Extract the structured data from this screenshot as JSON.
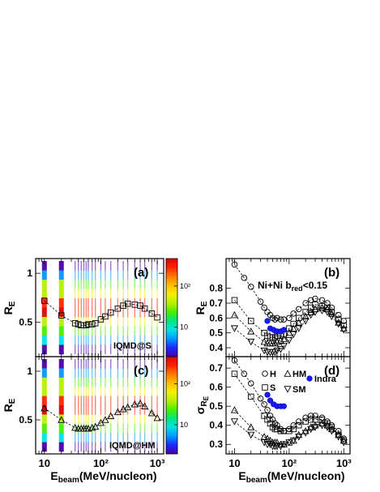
{
  "figure": {
    "panel_labels": [
      "(a)",
      "(b)",
      "(c)",
      "(d)"
    ],
    "x_axis_title_main": "E",
    "x_axis_title_sub": "beam",
    "x_axis_title_units": "(MeV/nucleon)",
    "y_axis_title_main": "R",
    "y_axis_title_sub": "E",
    "sigma_axis_main": "σ",
    "sigma_axis_sub1": "R",
    "sigma_axis_sub2": "E"
  },
  "colorbar": {
    "tick_labels": [
      "10²",
      "10"
    ],
    "colors": [
      "#4b00a8",
      "#1a28ff",
      "#0098ff",
      "#00e3e3",
      "#00e680",
      "#48f000",
      "#b8f000",
      "#f5f000",
      "#ffc000",
      "#ff7a00",
      "#ff2400",
      "#e00000"
    ]
  },
  "chart_data": [
    {
      "id": "a",
      "type": "scatter",
      "label": "IQMD@S",
      "xscale": "log",
      "xlim": [
        7,
        1300
      ],
      "ylim": [
        0.15,
        1.15
      ],
      "xticks": [
        10,
        100,
        1000
      ],
      "xtick_labels": [
        "10",
        "10²",
        "10³"
      ],
      "yticks": [
        0.5,
        1
      ],
      "ytick_labels": [
        "0.5",
        "1"
      ],
      "series": [
        {
          "marker": "square",
          "x": [
            10,
            20,
            35,
            40,
            45,
            50,
            55,
            60,
            70,
            80,
            100,
            120,
            150,
            200,
            250,
            300,
            400,
            500,
            600,
            800,
            1000
          ],
          "y": [
            0.72,
            0.57,
            0.49,
            0.48,
            0.47,
            0.47,
            0.47,
            0.48,
            0.48,
            0.49,
            0.53,
            0.56,
            0.6,
            0.64,
            0.67,
            0.69,
            0.68,
            0.67,
            0.64,
            0.59,
            0.55
          ]
        }
      ],
      "vertical_bands_x": [
        10,
        20,
        35,
        40,
        45,
        50,
        55,
        60,
        70,
        80,
        100,
        120,
        150,
        200,
        250,
        300,
        400,
        500,
        600,
        800,
        1000
      ]
    },
    {
      "id": "c",
      "type": "scatter",
      "label": "IQMD@HM",
      "xscale": "log",
      "xlim": [
        7,
        1300
      ],
      "ylim": [
        0.15,
        1.15
      ],
      "xticks": [
        10,
        100,
        1000
      ],
      "xtick_labels": [
        "10",
        "10²",
        "10³"
      ],
      "yticks": [
        0.5,
        1
      ],
      "ytick_labels": [
        "0.5",
        "1"
      ],
      "series": [
        {
          "marker": "triangle-up",
          "x": [
            10,
            20,
            35,
            40,
            45,
            50,
            55,
            60,
            70,
            80,
            100,
            120,
            150,
            200,
            250,
            300,
            400,
            500,
            600,
            800,
            1000
          ],
          "y": [
            0.62,
            0.5,
            0.42,
            0.41,
            0.41,
            0.41,
            0.41,
            0.41,
            0.42,
            0.43,
            0.47,
            0.5,
            0.54,
            0.58,
            0.61,
            0.63,
            0.66,
            0.67,
            0.64,
            0.57,
            0.52
          ]
        }
      ],
      "vertical_bands_x": [
        10,
        20,
        35,
        40,
        45,
        50,
        55,
        60,
        70,
        80,
        100,
        120,
        150,
        200,
        250,
        300,
        400,
        500,
        600,
        800,
        1000
      ]
    },
    {
      "id": "b",
      "type": "scatter",
      "annotation": "Ni+Ni b",
      "annotation_sub": "red",
      "annotation_tail": "<0.15",
      "xscale": "log",
      "xlim": [
        7,
        1300
      ],
      "ylim": [
        0.34,
        1.0
      ],
      "xticks": [
        10,
        100,
        1000
      ],
      "xtick_labels": [
        "10",
        "10²",
        "10³"
      ],
      "yticks": [
        0.4,
        0.5,
        0.6,
        0.7,
        0.8
      ],
      "ytick_labels": [
        "0.4",
        "0.5",
        "0.6",
        "0.7",
        "0.8"
      ],
      "series": [
        {
          "marker": "circle",
          "x": [
            10,
            15,
            20,
            30,
            35,
            40,
            45,
            50,
            55,
            60,
            70,
            80,
            100,
            120,
            150,
            200,
            250,
            300,
            400,
            500,
            600,
            800,
            1000
          ],
          "y": [
            0.96,
            0.87,
            0.81,
            0.71,
            0.67,
            0.64,
            0.62,
            0.6,
            0.59,
            0.6,
            0.59,
            0.59,
            0.6,
            0.63,
            0.66,
            0.7,
            0.72,
            0.73,
            0.72,
            0.7,
            0.67,
            0.62,
            0.58
          ]
        },
        {
          "marker": "square",
          "x": [
            10,
            20,
            35,
            40,
            45,
            50,
            55,
            60,
            70,
            80,
            100,
            120,
            150,
            200,
            250,
            300,
            400,
            500,
            600,
            800,
            1000
          ],
          "y": [
            0.72,
            0.58,
            0.5,
            0.48,
            0.47,
            0.47,
            0.47,
            0.48,
            0.48,
            0.49,
            0.53,
            0.56,
            0.6,
            0.64,
            0.67,
            0.69,
            0.68,
            0.67,
            0.64,
            0.59,
            0.55
          ]
        },
        {
          "marker": "triangle-up",
          "x": [
            10,
            20,
            35,
            40,
            45,
            50,
            55,
            60,
            70,
            80,
            100,
            120,
            150,
            200,
            250,
            300,
            400,
            500,
            600,
            800,
            1000
          ],
          "y": [
            0.62,
            0.51,
            0.44,
            0.43,
            0.43,
            0.43,
            0.43,
            0.44,
            0.45,
            0.46,
            0.5,
            0.53,
            0.57,
            0.61,
            0.64,
            0.66,
            0.67,
            0.66,
            0.63,
            0.57,
            0.53
          ]
        },
        {
          "marker": "triangle-down",
          "x": [
            10,
            20,
            35,
            40,
            45,
            50,
            55,
            60,
            70,
            80,
            100,
            120,
            150,
            200,
            250,
            300,
            400,
            500,
            600,
            800,
            1000
          ],
          "y": [
            0.53,
            0.44,
            0.38,
            0.37,
            0.37,
            0.37,
            0.37,
            0.38,
            0.39,
            0.41,
            0.45,
            0.49,
            0.53,
            0.58,
            0.62,
            0.64,
            0.65,
            0.64,
            0.61,
            0.56,
            0.52
          ]
        },
        {
          "marker": "filled-circle",
          "x": [
            40,
            45,
            52,
            60,
            70,
            80
          ],
          "y": [
            0.58,
            0.53,
            0.52,
            0.51,
            0.51,
            0.52
          ]
        }
      ]
    },
    {
      "id": "d",
      "type": "scatter",
      "xscale": "log",
      "xlim": [
        7,
        1300
      ],
      "ylim": [
        0.25,
        0.76
      ],
      "xticks": [
        10,
        100,
        1000
      ],
      "xtick_labels": [
        "10",
        "10²",
        "10³"
      ],
      "yticks": [
        0.3,
        0.4,
        0.5,
        0.6,
        0.7
      ],
      "ytick_labels": [
        "0.3",
        "0.4",
        "0.5",
        "0.6",
        "0.7"
      ],
      "legend": [
        "H",
        "HM",
        "Indra",
        "S",
        "SM"
      ],
      "legend_placement": "top-right",
      "series": [
        {
          "name": "H",
          "marker": "circle",
          "x": [
            10,
            15,
            20,
            30,
            35,
            40,
            45,
            50,
            55,
            60,
            70,
            80,
            100,
            120,
            150,
            200,
            250,
            300,
            400,
            500,
            600,
            800,
            1000
          ],
          "y": [
            0.74,
            0.67,
            0.62,
            0.54,
            0.51,
            0.48,
            0.45,
            0.43,
            0.41,
            0.4,
            0.38,
            0.37,
            0.38,
            0.4,
            0.42,
            0.44,
            0.45,
            0.45,
            0.44,
            0.42,
            0.4,
            0.37,
            0.33
          ]
        },
        {
          "name": "S",
          "marker": "square",
          "x": [
            10,
            20,
            35,
            40,
            45,
            50,
            55,
            60,
            70,
            80,
            100,
            120,
            150,
            200,
            250,
            300,
            400,
            500,
            600,
            800,
            1000
          ],
          "y": [
            0.67,
            0.55,
            0.45,
            0.43,
            0.41,
            0.39,
            0.38,
            0.38,
            0.37,
            0.37,
            0.37,
            0.38,
            0.4,
            0.42,
            0.43,
            0.43,
            0.43,
            0.41,
            0.39,
            0.35,
            0.32
          ]
        },
        {
          "name": "HM",
          "marker": "triangle-up",
          "x": [
            10,
            20,
            35,
            40,
            45,
            50,
            55,
            60,
            70,
            80,
            100,
            120,
            150,
            200,
            250,
            300,
            400,
            500,
            600,
            800,
            1000
          ],
          "y": [
            0.48,
            0.39,
            0.34,
            0.33,
            0.32,
            0.31,
            0.31,
            0.31,
            0.3,
            0.3,
            0.31,
            0.32,
            0.35,
            0.37,
            0.39,
            0.4,
            0.41,
            0.4,
            0.38,
            0.35,
            0.32
          ]
        },
        {
          "name": "SM",
          "marker": "triangle-down",
          "x": [
            10,
            20,
            35,
            40,
            45,
            50,
            55,
            60,
            70,
            80,
            100,
            120,
            150,
            200,
            250,
            300,
            400,
            500,
            600,
            800,
            1000
          ],
          "y": [
            0.42,
            0.35,
            0.31,
            0.3,
            0.3,
            0.29,
            0.29,
            0.29,
            0.29,
            0.3,
            0.31,
            0.32,
            0.34,
            0.36,
            0.38,
            0.39,
            0.4,
            0.39,
            0.37,
            0.34,
            0.31
          ]
        },
        {
          "name": "Indra",
          "marker": "filled-circle",
          "x": [
            40,
            45,
            52,
            60,
            70,
            80
          ],
          "y": [
            0.56,
            0.53,
            0.51,
            0.5,
            0.5,
            0.5
          ]
        }
      ]
    }
  ]
}
